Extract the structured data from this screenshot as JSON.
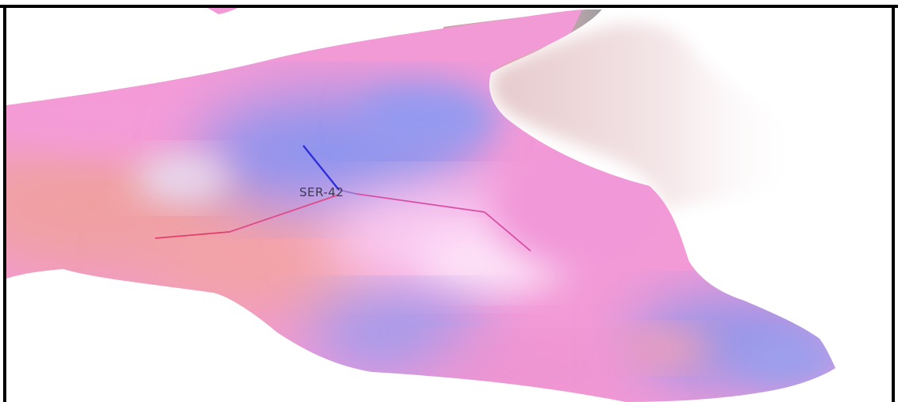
{
  "viewer": {
    "residue_label": "SER-42",
    "colors": {
      "surface_pink": "#f39ad8",
      "surface_blue": "#8f96f0",
      "surface_salmon": "#f0a0a0",
      "surface_pale": "#f3e4e6",
      "stick_blue": "#2b2bd9",
      "stick_red": "#e0406a",
      "frame": "#000000"
    }
  }
}
